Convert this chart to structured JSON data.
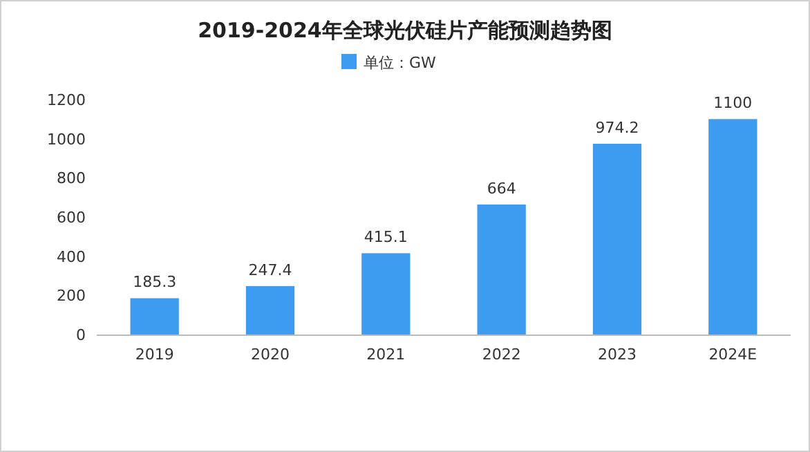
{
  "chart_data": {
    "type": "bar",
    "title": "2019-2024年全球光伏硅片产能预测趋势图",
    "categories": [
      "2019",
      "2020",
      "2021",
      "2022",
      "2023",
      "2024E"
    ],
    "series": [
      {
        "name": "单位：GW",
        "color": "#3d9cf0",
        "values": [
          185.3,
          247.4,
          415.1,
          664,
          974.2,
          1100
        ]
      }
    ],
    "ylim": [
      0,
      1200
    ],
    "yticks": [
      0,
      200,
      400,
      600,
      800,
      1000,
      1200
    ],
    "data_labels": true,
    "legend": "top"
  }
}
